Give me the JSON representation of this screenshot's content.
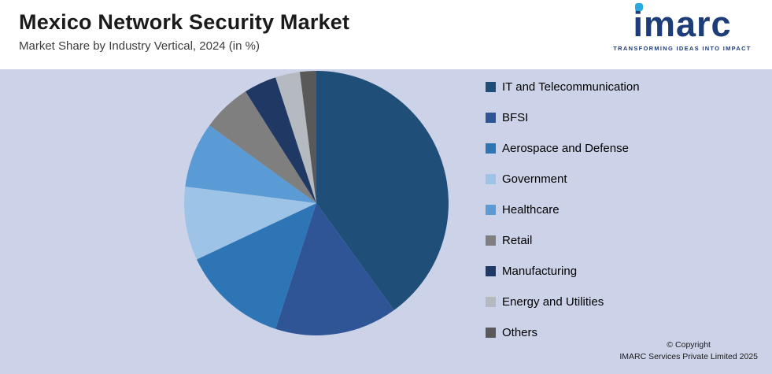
{
  "header": {
    "title": "Mexico Network Security Market",
    "subtitle": "Market Share by Industry Vertical, 2024 (in %)"
  },
  "logo": {
    "text": "imarc",
    "tagline": "TRANSFORMING IDEAS INTO IMPACT"
  },
  "footer": {
    "copyright_line1": "© Copyright",
    "copyright_line2": "IMARC Services Private Limited 2025"
  },
  "colors": {
    "background": "#ccd3e8",
    "header_background": "#ffffff",
    "logo_navy": "#1d3d78",
    "logo_cyan": "#2aa9e0"
  },
  "chart_data": {
    "type": "pie",
    "title": "Mexico Network Security Market",
    "subtitle": "Market Share by Industry Vertical, 2024 (in %)",
    "legend_position": "right",
    "start_angle_deg": 0,
    "direction": "clockwise",
    "slices": [
      {
        "label": "IT and Telecommunication",
        "value": 40,
        "color": "#1f4e79"
      },
      {
        "label": "BFSI",
        "value": 15,
        "color": "#2f5597"
      },
      {
        "label": "Aerospace and Defense",
        "value": 13,
        "color": "#2e75b6"
      },
      {
        "label": "Government",
        "value": 9,
        "color": "#9dc3e6"
      },
      {
        "label": "Healthcare",
        "value": 8,
        "color": "#5b9bd5"
      },
      {
        "label": "Retail",
        "value": 6,
        "color": "#7f7f7f"
      },
      {
        "label": "Manufacturing",
        "value": 4,
        "color": "#1f3864"
      },
      {
        "label": "Energy and Utilities",
        "value": 3,
        "color": "#b5b9c0"
      },
      {
        "label": "Others",
        "value": 2,
        "color": "#595959"
      }
    ]
  }
}
